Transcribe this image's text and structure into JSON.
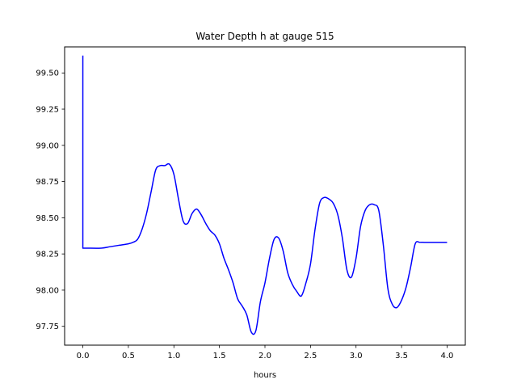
{
  "chart_data": {
    "type": "line",
    "title": "Water Depth h at gauge 515",
    "xlabel": "hours",
    "ylabel": "",
    "xlim": [
      -0.2,
      4.2
    ],
    "ylim": [
      97.62,
      99.68
    ],
    "xticks": [
      0.0,
      0.5,
      1.0,
      1.5,
      2.0,
      2.5,
      3.0,
      3.5,
      4.0
    ],
    "xtick_labels": [
      "0.0",
      "0.5",
      "1.0",
      "1.5",
      "2.0",
      "2.5",
      "3.0",
      "3.5",
      "4.0"
    ],
    "yticks": [
      97.75,
      98.0,
      98.25,
      98.5,
      98.75,
      99.0,
      99.25,
      99.5
    ],
    "ytick_labels": [
      "97.75",
      "98.00",
      "98.25",
      "98.50",
      "98.75",
      "99.00",
      "99.25",
      "99.50"
    ],
    "grid": false,
    "legend": "none",
    "series": [
      {
        "color": "#0000ff",
        "x": [
          0.0,
          0.0,
          0.05,
          0.2,
          0.3,
          0.4,
          0.5,
          0.55,
          0.6,
          0.65,
          0.7,
          0.75,
          0.8,
          0.85,
          0.9,
          0.95,
          1.0,
          1.05,
          1.1,
          1.15,
          1.2,
          1.25,
          1.3,
          1.35,
          1.4,
          1.45,
          1.5,
          1.55,
          1.6,
          1.65,
          1.7,
          1.75,
          1.8,
          1.85,
          1.9,
          1.95,
          2.0,
          2.05,
          2.1,
          2.15,
          2.2,
          2.25,
          2.3,
          2.35,
          2.4,
          2.45,
          2.5,
          2.55,
          2.6,
          2.65,
          2.7,
          2.75,
          2.8,
          2.85,
          2.9,
          2.95,
          3.0,
          3.05,
          3.1,
          3.15,
          3.2,
          3.25,
          3.3,
          3.35,
          3.4,
          3.45,
          3.5,
          3.55,
          3.6,
          3.65,
          3.7,
          3.75,
          3.8,
          3.85,
          3.9,
          3.95,
          4.0
        ],
        "y": [
          99.62,
          98.29,
          98.29,
          98.29,
          98.3,
          98.31,
          98.32,
          98.33,
          98.35,
          98.42,
          98.53,
          98.68,
          98.83,
          98.86,
          98.86,
          98.87,
          98.8,
          98.63,
          98.48,
          98.46,
          98.53,
          98.56,
          98.52,
          98.46,
          98.41,
          98.38,
          98.32,
          98.22,
          98.14,
          98.05,
          97.94,
          97.89,
          97.83,
          97.71,
          97.72,
          97.92,
          98.05,
          98.22,
          98.35,
          98.36,
          98.27,
          98.12,
          98.04,
          97.99,
          97.96,
          98.05,
          98.18,
          98.42,
          98.6,
          98.64,
          98.63,
          98.6,
          98.52,
          98.36,
          98.14,
          98.09,
          98.22,
          98.44,
          98.55,
          98.59,
          98.59,
          98.55,
          98.31,
          98.01,
          97.9,
          97.88,
          97.93,
          98.02,
          98.16,
          98.32,
          98.33,
          98.33,
          98.33,
          98.33,
          98.33,
          98.33,
          98.33
        ]
      }
    ]
  }
}
